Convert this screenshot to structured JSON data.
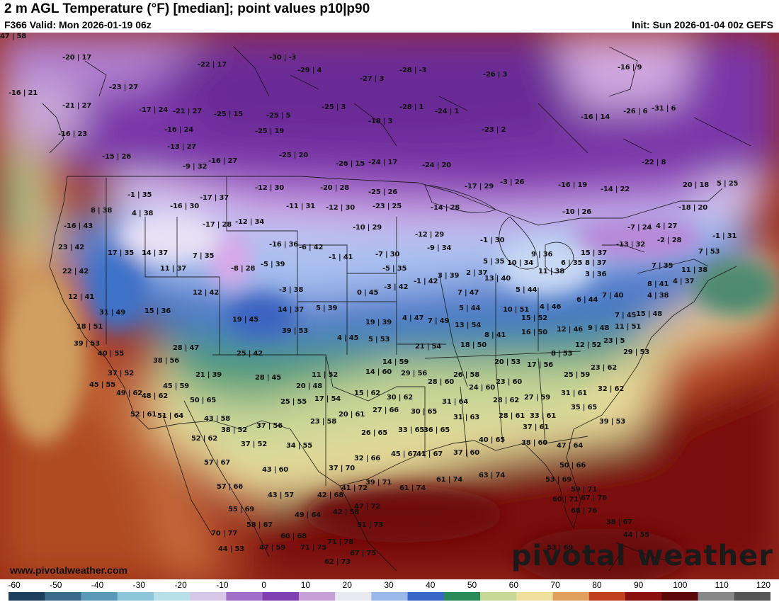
{
  "header": {
    "title": "2 m AGL Temperature (°F) [median]; point values p10|p90",
    "valid": "F366 Valid: Mon 2026-01-19 06z",
    "init": "Init: Sun 2026-01-04 00z GEFS"
  },
  "watermark": {
    "site": "www.pivotalweather.com",
    "brand": "pivotal weather"
  },
  "legend": {
    "ticks": [
      "-60",
      "-50",
      "-40",
      "-30",
      "-20",
      "-10",
      "0",
      "10",
      "20",
      "30",
      "40",
      "50",
      "60",
      "70",
      "80",
      "90",
      "100",
      "110",
      "120"
    ],
    "colors": [
      "#1e3e5e",
      "#3a6a8a",
      "#5a9ab8",
      "#8cc6d8",
      "#b8e0e8",
      "#d8c8e8",
      "#a070c8",
      "#8040b0",
      "#c8a0d8",
      "#e8e8f0",
      "#9ab8e8",
      "#3a66c8",
      "#2a8a5a",
      "#c8d898",
      "#f0e0a0",
      "#e0a060",
      "#c04020",
      "#8a1010",
      "#5a0808",
      "#888888",
      "#555555"
    ]
  },
  "points": [
    {
      "t": "-20 | 17"
    },
    {
      "t": "-22 | 17"
    },
    {
      "t": "-30 | -3"
    },
    {
      "t": "-29 | 4"
    },
    {
      "t": "-28 | -3"
    },
    {
      "t": "-26 | 3"
    },
    {
      "t": "-16 | 21"
    },
    {
      "t": "-23 | 27"
    },
    {
      "t": "-21 | 27"
    },
    {
      "t": "-17 | 24"
    },
    {
      "t": "-21 | 27"
    },
    {
      "t": "-25 | 15"
    },
    {
      "t": "-25 | 5"
    },
    {
      "t": "-25 | 3"
    },
    {
      "t": "-28 | 1"
    },
    {
      "t": "-24 | 1"
    },
    {
      "t": "-27 | 3"
    },
    {
      "t": "-26 | 6"
    },
    {
      "t": "-31 | 6"
    },
    {
      "t": "-16 | 24"
    },
    {
      "t": "-25 | 19"
    },
    {
      "t": "-18 | 3"
    },
    {
      "t": "-23 | 2"
    },
    {
      "t": "-16 | 23"
    },
    {
      "t": "-13 | 27"
    },
    {
      "t": "-16 | 14"
    },
    {
      "t": "-16 | 9"
    },
    {
      "t": "-15 | 26"
    },
    {
      "t": "-9 | 32"
    },
    {
      "t": "-16 | 27"
    },
    {
      "t": "-25 | 20"
    },
    {
      "t": "-26 | 15"
    },
    {
      "t": "-24 | 17"
    },
    {
      "t": "-24 | 20"
    },
    {
      "t": "-22 | 8"
    },
    {
      "t": "-12 | 30"
    },
    {
      "t": "-20 | 28"
    },
    {
      "t": "-25 | 26"
    },
    {
      "t": "-17 | 29"
    },
    {
      "t": "-3 | 26"
    },
    {
      "t": "-16 | 19"
    },
    {
      "t": "-14 | 22"
    },
    {
      "t": "20 | 18"
    },
    {
      "t": "5 | 25"
    },
    {
      "t": "-1 | 35"
    },
    {
      "t": "-17 | 37"
    },
    {
      "t": "-11 | 31"
    },
    {
      "t": "-12 | 30"
    },
    {
      "t": "-23 | 25"
    },
    {
      "t": "-14 | 28"
    },
    {
      "t": "-10 | 26"
    },
    {
      "t": "-18 | 20"
    },
    {
      "t": "-16 | 30"
    },
    {
      "t": "8 | 38"
    },
    {
      "t": "4 | 38"
    },
    {
      "t": "-17 | 28"
    },
    {
      "t": "-12 | 34"
    },
    {
      "t": "-10 | 29"
    },
    {
      "t": "-12 | 29"
    },
    {
      "t": "-7 | 24"
    },
    {
      "t": "4 | 27"
    },
    {
      "t": "-16 | 43"
    },
    {
      "t": "-16 | 36"
    },
    {
      "t": "-6 | 42"
    },
    {
      "t": "-9 | 34"
    },
    {
      "t": "-1 | 30"
    },
    {
      "t": "-2 | 28"
    },
    {
      "t": "23 | 42"
    },
    {
      "t": "17 | 35"
    },
    {
      "t": "14 | 37"
    },
    {
      "t": "7 | 35"
    },
    {
      "t": "-1 | 41"
    },
    {
      "t": "-7 | 30"
    },
    {
      "t": "5 | 35"
    },
    {
      "t": "10 | 34"
    },
    {
      "t": "9 | 36"
    },
    {
      "t": "15 | 37"
    },
    {
      "t": "-13 | 32"
    },
    {
      "t": "-1 | 31"
    },
    {
      "t": "7 | 53"
    },
    {
      "t": "11 | 37"
    },
    {
      "t": "-8 | 28"
    },
    {
      "t": "-5 | 39"
    },
    {
      "t": "-5 | 35"
    },
    {
      "t": "3 | 39"
    },
    {
      "t": "2 | 37"
    },
    {
      "t": "13 | 40"
    },
    {
      "t": "11 | 38"
    },
    {
      "t": "6 | 35"
    },
    {
      "t": "8 | 37"
    },
    {
      "t": "3 | 36"
    },
    {
      "t": "7 | 35"
    },
    {
      "t": "11 | 38"
    },
    {
      "t": "22 | 42"
    },
    {
      "t": "12 | 42"
    },
    {
      "t": "-3 | 38"
    },
    {
      "t": "0 | 45"
    },
    {
      "t": "-3 | 42"
    },
    {
      "t": "-1 | 42"
    },
    {
      "t": "7 | 47"
    },
    {
      "t": "5 | 44"
    },
    {
      "t": "8 | 41"
    },
    {
      "t": "4 | 37"
    },
    {
      "t": "12 | 41"
    },
    {
      "t": "31 | 49"
    },
    {
      "t": "15 | 36"
    },
    {
      "t": "14 | 37"
    },
    {
      "t": "5 | 39"
    },
    {
      "t": "5 | 44"
    },
    {
      "t": "10 | 51"
    },
    {
      "t": "4 | 46"
    },
    {
      "t": "6 | 44"
    },
    {
      "t": "7 | 40"
    },
    {
      "t": "4 | 38"
    },
    {
      "t": "19 | 45"
    },
    {
      "t": "19 | 39"
    },
    {
      "t": "4 | 47"
    },
    {
      "t": "7 | 49"
    },
    {
      "t": "13 | 54"
    },
    {
      "t": "15 | 52"
    },
    {
      "t": "7 | 45"
    },
    {
      "t": "15 | 48"
    },
    {
      "t": "18 | 51"
    },
    {
      "t": "39 | 53"
    },
    {
      "t": "8 | 41"
    },
    {
      "t": "16 | 50"
    },
    {
      "t": "12 | 46"
    },
    {
      "t": "9 | 48"
    },
    {
      "t": "11 | 51"
    },
    {
      "t": "39 | 53"
    },
    {
      "t": "4 | 45"
    },
    {
      "t": "5 | 53"
    },
    {
      "t": "21 | 54"
    },
    {
      "t": "18 | 50"
    },
    {
      "t": "12 | 52"
    },
    {
      "t": "23 | 5"
    },
    {
      "t": "40 | 55"
    },
    {
      "t": "28 | 47"
    },
    {
      "t": "25 | 42"
    },
    {
      "t": "14 | 59"
    },
    {
      "t": "8 | 53"
    },
    {
      "t": "29 | 53"
    },
    {
      "t": "38 | 56"
    },
    {
      "t": "20 | 53"
    },
    {
      "t": "17 | 56"
    },
    {
      "t": "37 | 52"
    },
    {
      "t": "21 | 39"
    },
    {
      "t": "28 | 45"
    },
    {
      "t": "11 | 52"
    },
    {
      "t": "14 | 60"
    },
    {
      "t": "29 | 56"
    },
    {
      "t": "26 | 58"
    },
    {
      "t": "25 | 59"
    },
    {
      "t": "23 | 62"
    },
    {
      "t": "45 | 55"
    },
    {
      "t": "45 | 59"
    },
    {
      "t": "28 | 60"
    },
    {
      "t": "23 | 60"
    },
    {
      "t": "49 | 62"
    },
    {
      "t": "48 | 62"
    },
    {
      "t": "20 | 48"
    },
    {
      "t": "24 | 60"
    },
    {
      "t": "27 | 59"
    },
    {
      "t": "31 | 61"
    },
    {
      "t": "32 | 62"
    },
    {
      "t": "50 | 65"
    },
    {
      "t": "17 | 54"
    },
    {
      "t": "15 | 62"
    },
    {
      "t": "30 | 62"
    },
    {
      "t": "28 | 62"
    },
    {
      "t": "25 | 55"
    },
    {
      "t": "31 | 64"
    },
    {
      "t": "35 | 65"
    },
    {
      "t": "52 | 61"
    },
    {
      "t": "51 | 64"
    },
    {
      "t": "43 | 58"
    },
    {
      "t": "20 | 61"
    },
    {
      "t": "27 | 66"
    },
    {
      "t": "30 | 65"
    },
    {
      "t": "31 | 63"
    },
    {
      "t": "28 | 61"
    },
    {
      "t": "33 | 61"
    },
    {
      "t": "23 | 58"
    },
    {
      "t": "39 | 53"
    },
    {
      "t": "37 | 56"
    },
    {
      "t": "38 | 52"
    },
    {
      "t": "33 | 65"
    },
    {
      "t": "36 | 65"
    },
    {
      "t": "37 | 61"
    },
    {
      "t": "26 | 65"
    },
    {
      "t": "52 | 62"
    },
    {
      "t": "37 | 52"
    },
    {
      "t": "34 | 55"
    },
    {
      "t": "40 | 65"
    },
    {
      "t": "38 | 60"
    },
    {
      "t": "47 | 64"
    },
    {
      "t": "41 | 67"
    },
    {
      "t": "45 | 67"
    },
    {
      "t": "37 | 60"
    },
    {
      "t": "32 | 66"
    },
    {
      "t": "57 | 67"
    },
    {
      "t": "43 | 60"
    },
    {
      "t": "37 | 70"
    },
    {
      "t": "50 | 66"
    },
    {
      "t": "61 | 74"
    },
    {
      "t": "61 | 74"
    },
    {
      "t": "63 | 74"
    },
    {
      "t": "57 | 66"
    },
    {
      "t": "41 | 72"
    },
    {
      "t": "39 | 71"
    },
    {
      "t": "53 | 69"
    },
    {
      "t": "43 | 57"
    },
    {
      "t": "42 | 68"
    },
    {
      "t": "59 | 71"
    },
    {
      "t": "55 | 69"
    },
    {
      "t": "47 | 72"
    },
    {
      "t": "60 | 71"
    },
    {
      "t": "67 | 76"
    },
    {
      "t": "49 | 64"
    },
    {
      "t": "42 | 58"
    },
    {
      "t": "68 | 76"
    },
    {
      "t": "58 | 67"
    },
    {
      "t": "51 | 73"
    },
    {
      "t": "38 | 67"
    },
    {
      "t": "70 | 77"
    },
    {
      "t": "60 | 68"
    },
    {
      "t": "44 | 55"
    },
    {
      "t": "71 | 78"
    },
    {
      "t": "47 | 59"
    },
    {
      "t": "71 | 75"
    },
    {
      "t": "44 | 53"
    },
    {
      "t": "67 | 75"
    },
    {
      "t": "53 | 69"
    },
    {
      "t": "62 | 73"
    },
    {
      "t": "47 | 58"
    }
  ]
}
